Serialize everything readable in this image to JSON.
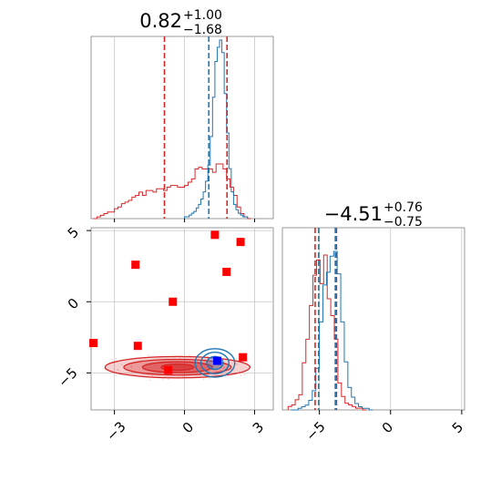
{
  "chart_data": {
    "type": "corner",
    "colors": {
      "primary": "#1f77b4",
      "secondary": "#d62728",
      "grid": "#c8c8c8"
    },
    "params": [
      {
        "title_main": "0.82",
        "title_up": "+1.00",
        "title_down": "−1.68",
        "median": 0.82,
        "lo": -0.86,
        "hi": 1.82,
        "blue_lines": [
          1.04
        ],
        "red_lines": [
          -0.86,
          1.82
        ],
        "ticks": [
          -3,
          0,
          3
        ],
        "tick_labels": [
          "−3",
          "0",
          "3"
        ],
        "range": [
          -4.0,
          3.8
        ]
      },
      {
        "title_main": "−4.51",
        "title_up": "+0.76",
        "title_down": "−0.75",
        "median": -4.51,
        "lo": -5.26,
        "hi": -3.75,
        "blue_lines": [
          -5.05,
          -3.88
        ],
        "red_lines": [
          -5.3,
          -3.8
        ],
        "ticks": [
          -5,
          0,
          5
        ],
        "tick_labels": [
          "−5",
          "0",
          "5"
        ],
        "range": [
          -7.6,
          5.2
        ]
      }
    ],
    "hist1_blue": {
      "x0": 0.0,
      "dx": 0.1,
      "h": [
        1,
        1,
        2,
        3,
        4,
        6,
        8,
        11,
        15,
        21,
        30,
        46,
        68,
        88,
        96,
        100,
        93,
        70,
        48,
        28,
        15,
        8,
        5,
        3,
        2,
        1,
        1
      ]
    },
    "hist1_red": {
      "x0": -3.9,
      "dx": 0.15,
      "h": [
        0,
        1,
        2,
        3,
        4,
        4,
        6,
        7,
        9,
        10,
        11,
        13,
        14,
        16,
        14,
        17,
        17,
        16,
        18,
        18,
        17,
        19,
        20,
        20,
        19,
        19,
        20,
        22,
        24,
        30,
        31,
        30,
        30,
        30,
        28,
        33,
        33,
        30,
        24,
        19,
        14,
        7,
        3,
        1,
        0
      ]
    },
    "hist2_blue": {
      "x0": -7.0,
      "dx": 0.25,
      "h": [
        0,
        0,
        1,
        2,
        3,
        6,
        12,
        26,
        55,
        78,
        86,
        96,
        99,
        85,
        55,
        30,
        14,
        8,
        4,
        2,
        1,
        1,
        0
      ]
    },
    "hist2_red": {
      "x0": -7.2,
      "dx": 0.25,
      "h": [
        2,
        3,
        6,
        9,
        28,
        42,
        62,
        80,
        89,
        75,
        92,
        66,
        56,
        42,
        16,
        8,
        4,
        3,
        2,
        1,
        1,
        0
      ]
    },
    "scatter_points": [
      {
        "x": 1.3,
        "y": 4.7
      },
      {
        "x": 2.4,
        "y": 4.2
      },
      {
        "x": -2.1,
        "y": 2.6
      },
      {
        "x": 1.8,
        "y": 2.1
      },
      {
        "x": -0.5,
        "y": 0.0
      },
      {
        "x": -3.9,
        "y": -2.9
      },
      {
        "x": -2.0,
        "y": -3.1
      },
      {
        "x": 2.5,
        "y": -3.9
      },
      {
        "x": -0.7,
        "y": -4.8
      }
    ],
    "marker": {
      "x": 1.4,
      "y": -4.15
    },
    "contours_red": {
      "center": [
        -0.3,
        -4.6
      ],
      "levels": [
        {
          "rx": 3.1,
          "ry": 0.75,
          "fill": 0.35
        },
        {
          "rx": 2.3,
          "ry": 0.55,
          "fill": 0.55
        },
        {
          "rx": 1.5,
          "ry": 0.38,
          "fill": 0.8
        },
        {
          "rx": 0.7,
          "ry": 0.22,
          "fill": 0.95
        }
      ]
    },
    "contours_blue": {
      "center": [
        1.3,
        -4.3
      ],
      "levels": [
        {
          "rx": 0.85,
          "ry": 1.0
        },
        {
          "rx": 0.6,
          "ry": 0.75
        },
        {
          "rx": 0.35,
          "ry": 0.45
        }
      ]
    }
  }
}
